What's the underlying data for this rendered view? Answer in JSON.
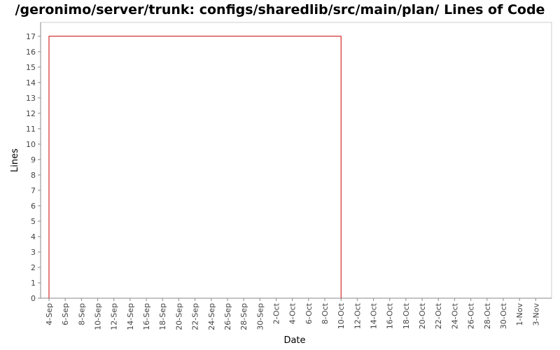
{
  "chart_data": {
    "type": "line",
    "title": "/geronimo/server/trunk: configs/sharedlib/src/main/plan/ Lines of Code",
    "xlabel": "Date",
    "ylabel": "Lines",
    "ylim": [
      0,
      17.9
    ],
    "yticks": [
      0,
      1,
      2,
      3,
      4,
      5,
      6,
      7,
      8,
      9,
      10,
      11,
      12,
      13,
      14,
      15,
      16,
      17
    ],
    "x_range_days": [
      0,
      61.7
    ],
    "x_ticks": [
      {
        "label": "4-Sep",
        "day": 0
      },
      {
        "label": "6-Sep",
        "day": 2
      },
      {
        "label": "8-Sep",
        "day": 4
      },
      {
        "label": "10-Sep",
        "day": 6
      },
      {
        "label": "12-Sep",
        "day": 8
      },
      {
        "label": "14-Sep",
        "day": 10
      },
      {
        "label": "16-Sep",
        "day": 12
      },
      {
        "label": "18-Sep",
        "day": 14
      },
      {
        "label": "20-Sep",
        "day": 16
      },
      {
        "label": "22-Sep",
        "day": 18
      },
      {
        "label": "24-Sep",
        "day": 20
      },
      {
        "label": "26-Sep",
        "day": 22
      },
      {
        "label": "28-Sep",
        "day": 24
      },
      {
        "label": "30-Sep",
        "day": 26
      },
      {
        "label": "2-Oct",
        "day": 28
      },
      {
        "label": "4-Oct",
        "day": 30
      },
      {
        "label": "6-Oct",
        "day": 32
      },
      {
        "label": "8-Oct",
        "day": 34
      },
      {
        "label": "10-Oct",
        "day": 36
      },
      {
        "label": "12-Oct",
        "day": 38
      },
      {
        "label": "14-Oct",
        "day": 40
      },
      {
        "label": "16-Oct",
        "day": 42
      },
      {
        "label": "18-Oct",
        "day": 44
      },
      {
        "label": "20-Oct",
        "day": 46
      },
      {
        "label": "22-Oct",
        "day": 48
      },
      {
        "label": "24-Oct",
        "day": 50
      },
      {
        "label": "26-Oct",
        "day": 52
      },
      {
        "label": "28-Oct",
        "day": 54
      },
      {
        "label": "30-Oct",
        "day": 56
      },
      {
        "label": "1-Nov",
        "day": 58
      },
      {
        "label": "3-Nov",
        "day": 60
      }
    ],
    "series": [
      {
        "color": "#cc0000",
        "points": [
          {
            "day": 0,
            "value": 0
          },
          {
            "day": 0,
            "value": 17
          },
          {
            "day": 36,
            "value": 17
          },
          {
            "day": 36,
            "value": 0
          }
        ]
      }
    ],
    "grid": false,
    "legend": "none"
  }
}
